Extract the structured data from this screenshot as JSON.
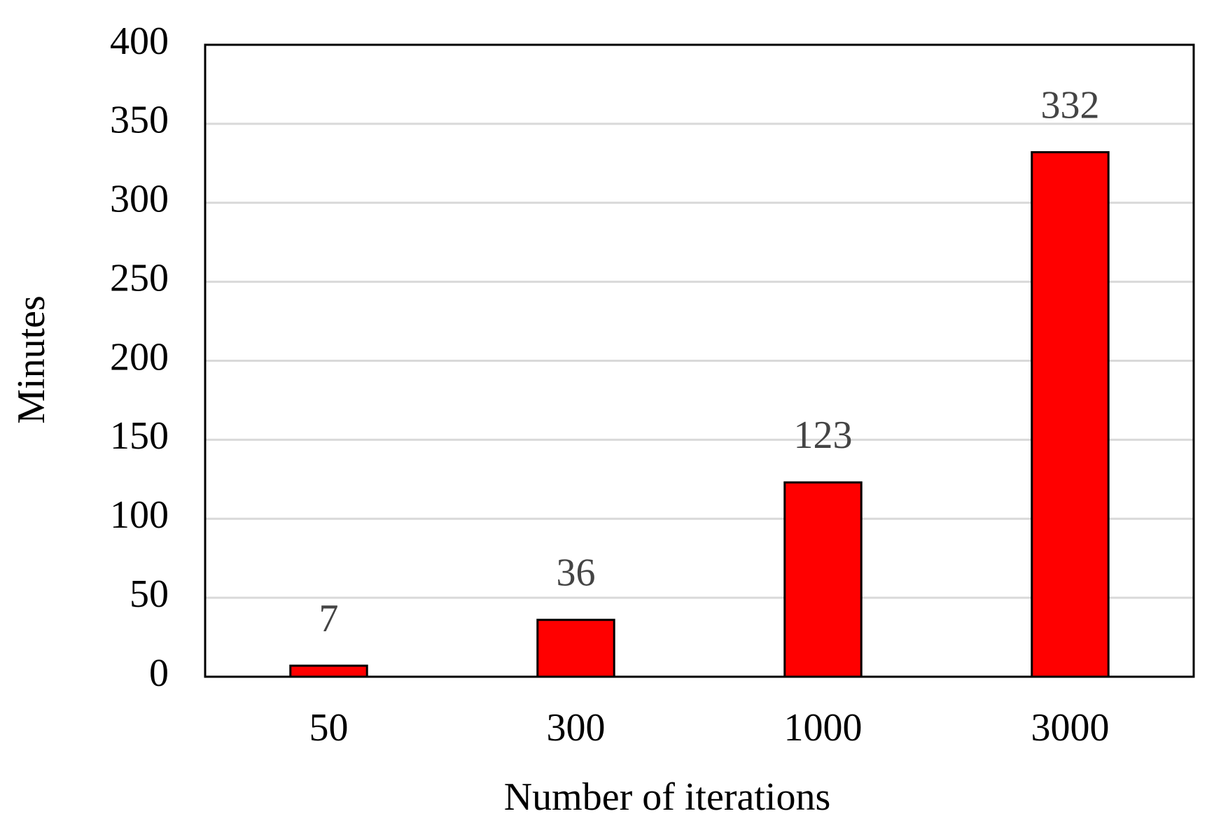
{
  "chart_data": {
    "type": "bar",
    "x_label": "Number of iterations",
    "y_label": "Minutes",
    "categories": [
      "50",
      "300",
      "1000",
      "3000"
    ],
    "values": [
      7,
      36,
      123,
      332
    ],
    "color": "#ff0000",
    "ylim": [
      0,
      400
    ],
    "yticks": [
      0,
      50,
      100,
      150,
      200,
      250,
      300,
      350,
      400
    ],
    "grid": true
  }
}
